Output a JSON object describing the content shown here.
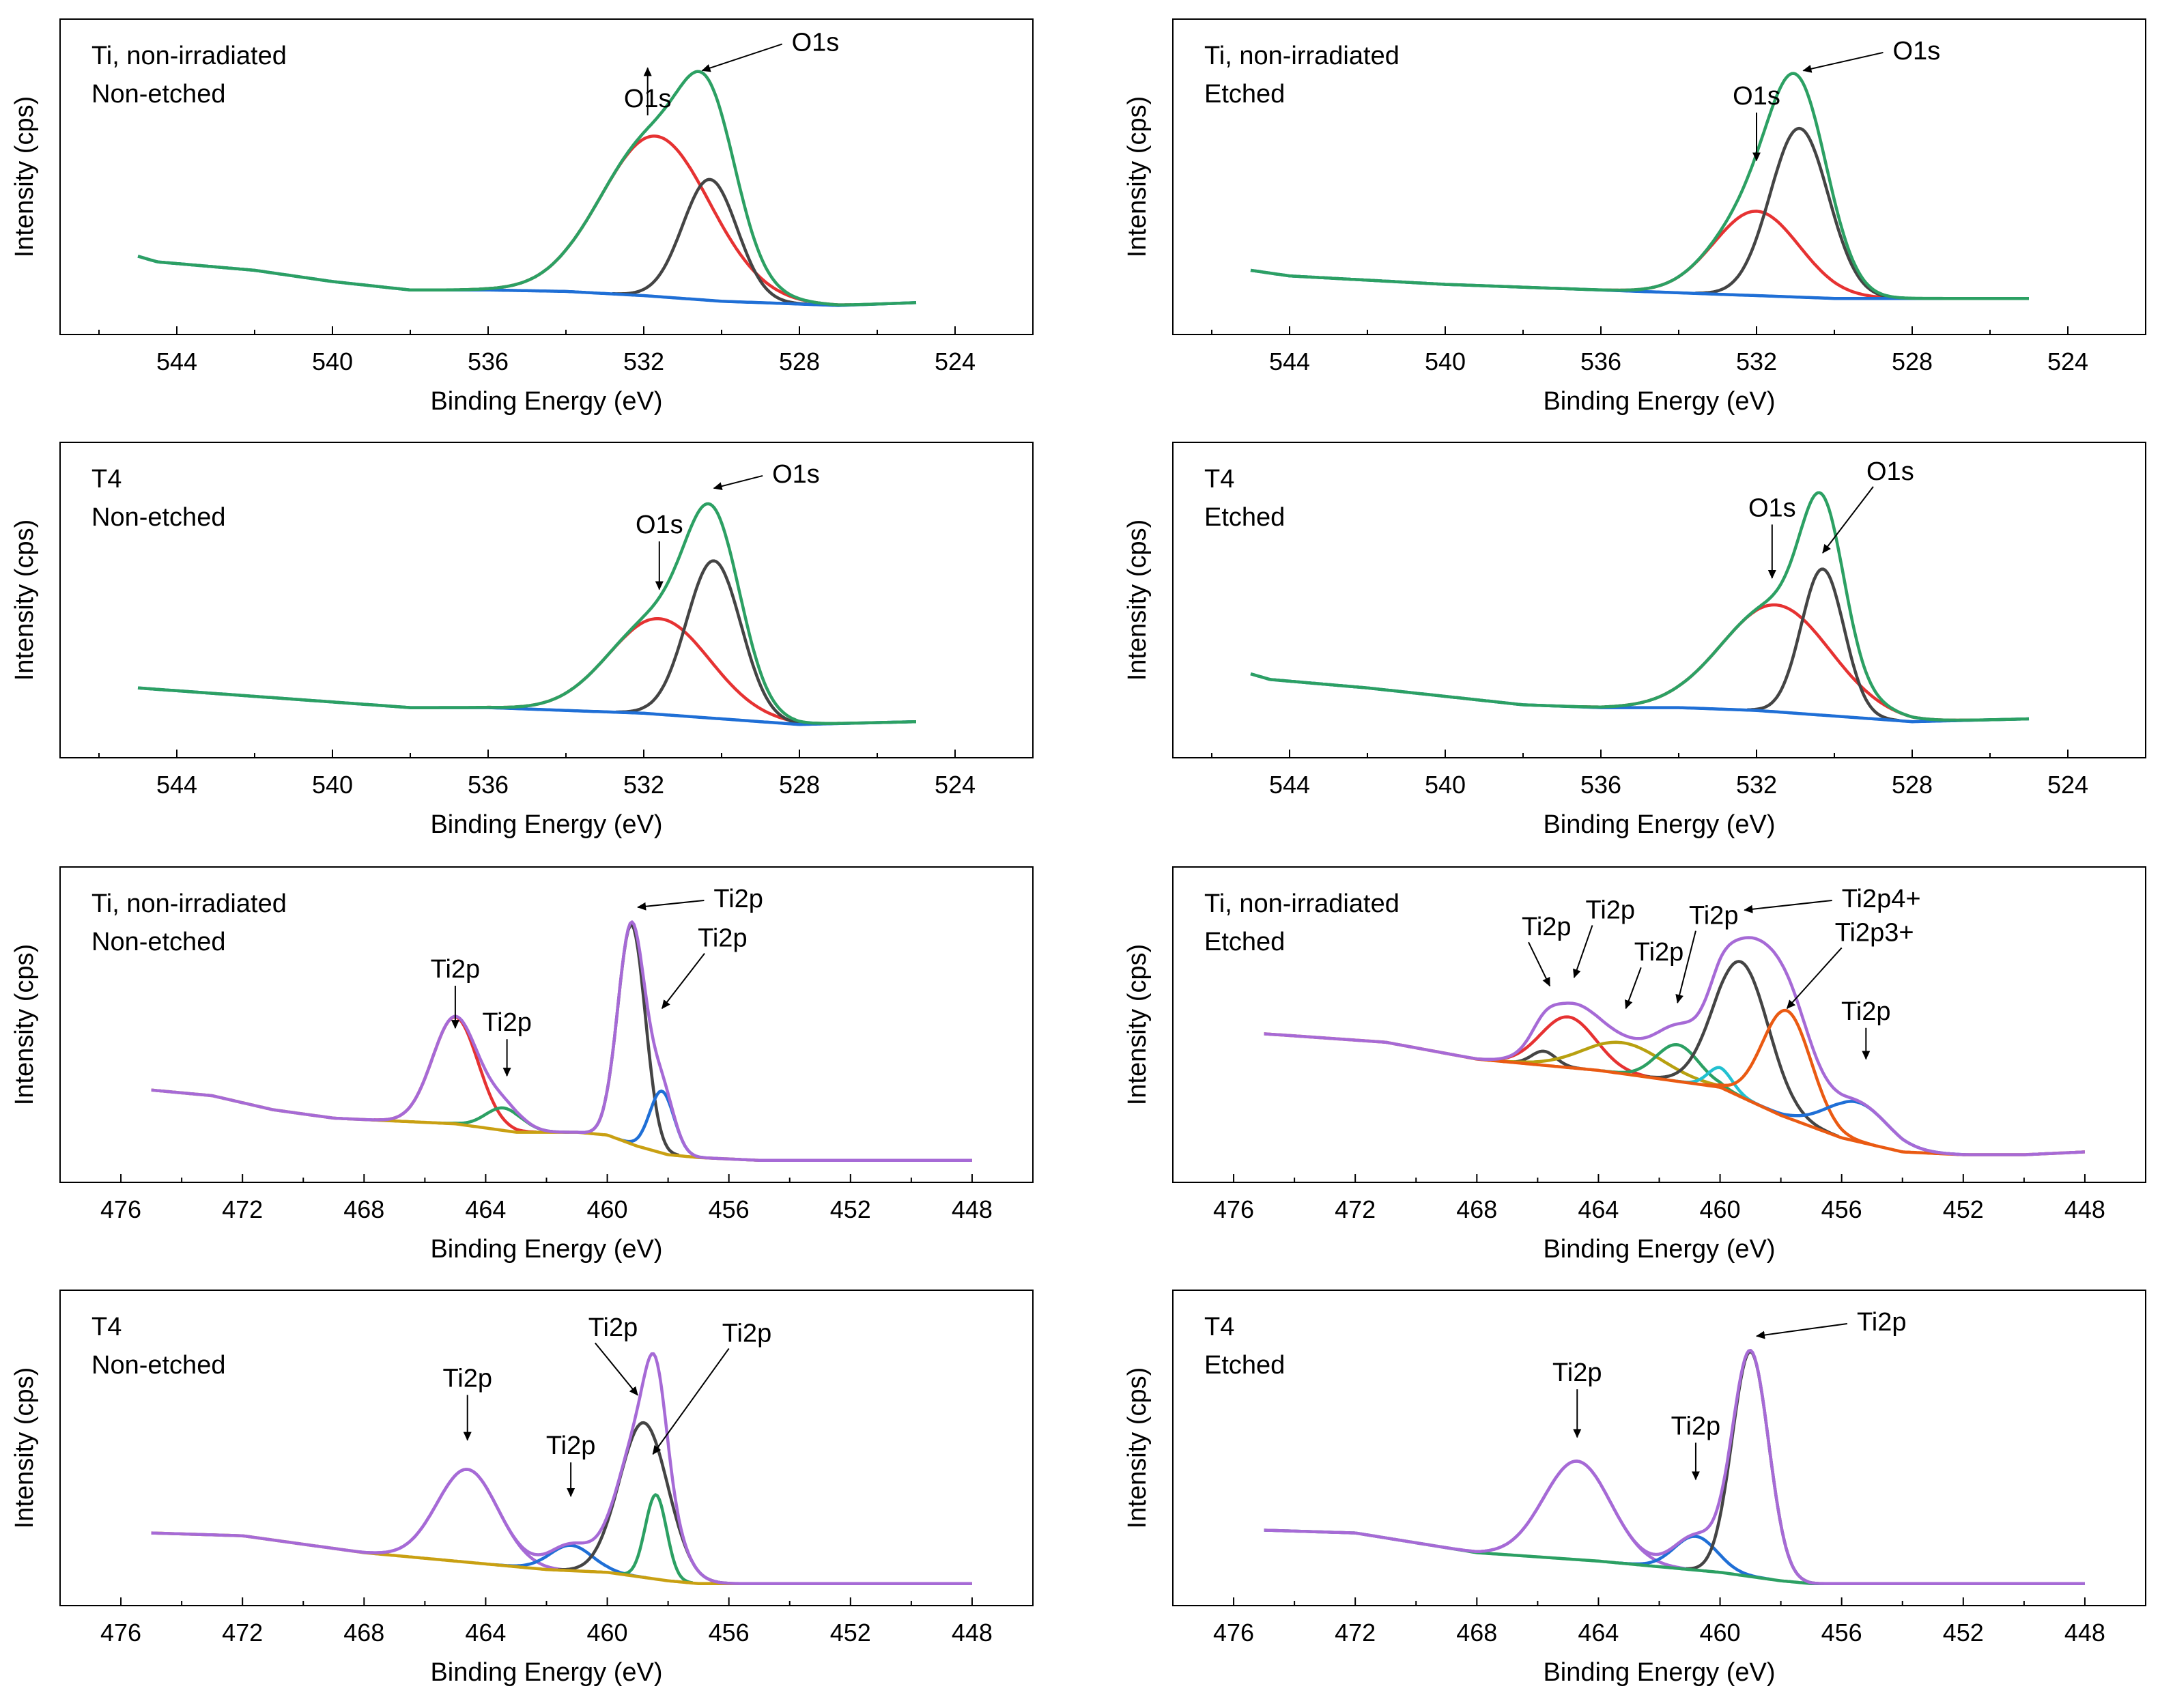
{
  "chart_data": [
    {
      "type": "line",
      "title_lines": [
        "Ti, non-irradiated",
        "Non-etched"
      ],
      "xlabel": "Binding Energy (eV)",
      "ylabel": "Intensity (cps)",
      "xlim": [
        547,
        522
      ],
      "xticks": [
        544,
        540,
        536,
        532,
        528,
        524
      ],
      "ylim": [
        0,
        100
      ],
      "background": {
        "x": [
          545,
          544.5,
          542,
          540,
          538,
          536,
          534,
          532,
          530,
          528,
          527,
          525
        ],
        "y": [
          22,
          20,
          17,
          13,
          10,
          10,
          9.5,
          8,
          6,
          5,
          4.5,
          5.5
        ]
      },
      "series": [
        {
          "name": "total",
          "color": "#2ca063",
          "kind": "sum",
          "shift": {
            "x": [
              545,
              544.5,
              542,
              540,
              538,
              537
            ],
            "y": [
              0,
              0,
              0,
              0,
              0.5,
              0.5
            ]
          }
        },
        {
          "name": "peak1",
          "color": "#e63232",
          "kind": "gauss",
          "center": 531.7,
          "amp": 57,
          "sigma": 1.4
        },
        {
          "name": "peak2",
          "color": "#444444",
          "kind": "gauss",
          "center": 530.3,
          "amp": 43,
          "sigma": 0.7
        }
      ],
      "annotations": [
        {
          "text": "O1s",
          "x": 531.9,
          "yfrac": 0.11,
          "tx": 531.9,
          "ty": 0.25,
          "arrow": "down"
        },
        {
          "text": "O1s",
          "x": 530.5,
          "yfrac": 0.12,
          "tx": 528.2,
          "ty": 0.05,
          "arrow": "left"
        }
      ]
    },
    {
      "type": "line",
      "title_lines": [
        "Ti, non-irradiated",
        "Etched"
      ],
      "xlabel": "Binding Energy (eV)",
      "ylabel": "Intensity (cps)",
      "xlim": [
        547,
        522
      ],
      "xticks": [
        544,
        540,
        536,
        532,
        528,
        524
      ],
      "ylim": [
        0,
        100
      ],
      "background": {
        "x": [
          545,
          544,
          540,
          536,
          532,
          530,
          528,
          525
        ],
        "y": [
          17,
          15,
          12,
          10,
          8,
          7,
          7,
          7
        ]
      },
      "series": [
        {
          "name": "total",
          "color": "#2ca063",
          "kind": "sum"
        },
        {
          "name": "peak1",
          "color": "#e63232",
          "kind": "gauss",
          "center": 532.0,
          "amp": 30,
          "sigma": 1.1
        },
        {
          "name": "peak2",
          "color": "#444444",
          "kind": "gauss",
          "center": 530.9,
          "amp": 60,
          "sigma": 0.75
        }
      ],
      "annotations": [
        {
          "text": "O1s",
          "x": 532.0,
          "yfrac": 0.44,
          "tx": 532.0,
          "ty": 0.24,
          "arrow": "down"
        },
        {
          "text": "O1s",
          "x": 530.8,
          "yfrac": 0.12,
          "tx": 528.5,
          "ty": 0.08,
          "arrow": "left"
        }
      ]
    },
    {
      "type": "line",
      "title_lines": [
        "T4",
        "Non-etched"
      ],
      "xlabel": "Binding Energy (eV)",
      "ylabel": "Intensity (cps)",
      "xlim": [
        547,
        522
      ],
      "xticks": [
        544,
        540,
        536,
        532,
        528,
        524
      ],
      "ylim": [
        0,
        100
      ],
      "background": {
        "x": [
          545,
          542,
          540,
          538,
          536,
          534,
          532,
          530,
          528,
          525
        ],
        "y": [
          19,
          16,
          14,
          12,
          12,
          11,
          10,
          8,
          6,
          7
        ]
      },
      "series": [
        {
          "name": "total",
          "color": "#2ca063",
          "kind": "sum"
        },
        {
          "name": "peak1",
          "color": "#e63232",
          "kind": "gauss",
          "center": 531.6,
          "amp": 34,
          "sigma": 1.3
        },
        {
          "name": "peak2",
          "color": "#444444",
          "kind": "gauss",
          "center": 530.2,
          "amp": 56,
          "sigma": 0.7
        }
      ],
      "annotations": [
        {
          "text": "O1s",
          "x": 531.6,
          "yfrac": 0.46,
          "tx": 531.6,
          "ty": 0.26,
          "arrow": "down"
        },
        {
          "text": "O1s",
          "x": 530.2,
          "yfrac": 0.1,
          "tx": 528.7,
          "ty": 0.08,
          "arrow": "left"
        }
      ]
    },
    {
      "type": "line",
      "title_lines": [
        "T4",
        "Etched"
      ],
      "xlabel": "Binding Energy (eV)",
      "ylabel": "Intensity (cps)",
      "xlim": [
        547,
        522
      ],
      "xticks": [
        544,
        540,
        536,
        532,
        528,
        524
      ],
      "ylim": [
        0,
        100
      ],
      "background": {
        "x": [
          545,
          544.5,
          542,
          540,
          538,
          536,
          534,
          532,
          530,
          528,
          525
        ],
        "y": [
          24,
          22,
          19,
          16,
          13,
          12,
          12,
          11,
          9,
          7,
          8
        ]
      },
      "series": [
        {
          "name": "total",
          "color": "#2ca063",
          "kind": "sum"
        },
        {
          "name": "peak1",
          "color": "#e63232",
          "kind": "gauss",
          "center": 531.5,
          "amp": 38,
          "sigma": 1.4
        },
        {
          "name": "peak2",
          "color": "#444444",
          "kind": "gauss",
          "center": 530.3,
          "amp": 52,
          "sigma": 0.55
        }
      ],
      "annotations": [
        {
          "text": "O1s",
          "x": 531.6,
          "yfrac": 0.42,
          "tx": 531.6,
          "ty": 0.2,
          "arrow": "down"
        },
        {
          "text": "O1s",
          "x": 530.3,
          "yfrac": 0.33,
          "tx": 529.0,
          "ty": 0.07,
          "arrow": "up"
        }
      ]
    },
    {
      "type": "line",
      "title_lines": [
        "Ti, non-irradiated",
        "Non-etched"
      ],
      "xlabel": "Binding Energy (eV)",
      "ylabel": "Intensity (cps)",
      "xlim": [
        478,
        446
      ],
      "xticks": [
        476,
        472,
        468,
        464,
        460,
        456,
        452,
        448
      ],
      "ylim": [
        0,
        100
      ],
      "background": {
        "x": [
          475,
          473,
          471,
          469,
          467,
          465,
          463,
          461,
          460,
          459,
          458,
          457,
          455,
          452,
          448
        ],
        "y": [
          27,
          25,
          20,
          17,
          16,
          15,
          12,
          12,
          11,
          7,
          4,
          3,
          2,
          2,
          2
        ]
      },
      "bgColor": "#c9a012",
      "series": [
        {
          "name": "total",
          "color": "#a66ad6",
          "kind": "sum"
        },
        {
          "name": "peak1",
          "color": "#e63232",
          "kind": "gauss",
          "center": 465.0,
          "amp": 38,
          "sigma": 0.75
        },
        {
          "name": "peak2",
          "color": "#2ca063",
          "kind": "gauss",
          "center": 463.4,
          "amp": 8,
          "sigma": 0.6
        },
        {
          "name": "peak3",
          "color": "#444444",
          "kind": "gauss",
          "center": 459.2,
          "amp": 78,
          "sigma": 0.45
        },
        {
          "name": "peak4",
          "color": "#1f6fd6",
          "kind": "gauss",
          "center": 458.2,
          "amp": 22,
          "sigma": 0.4
        }
      ],
      "annotations": [
        {
          "text": "Ti2p",
          "x": 465.0,
          "yfrac": 0.51,
          "tx": 465.0,
          "ty": 0.33,
          "arrow": "down"
        },
        {
          "text": "Ti2p",
          "x": 463.3,
          "yfrac": 0.68,
          "tx": 463.3,
          "ty": 0.52,
          "arrow": "down"
        },
        {
          "text": "Ti2p",
          "x": 459.0,
          "yfrac": 0.08,
          "tx": 456.5,
          "ty": 0.08,
          "arrow": "left"
        },
        {
          "text": "Ti2p",
          "x": 458.2,
          "yfrac": 0.44,
          "tx": 456.8,
          "ty": 0.22,
          "arrow": "up"
        }
      ]
    },
    {
      "type": "line",
      "title_lines": [
        "Ti, non-irradiated",
        "Etched"
      ],
      "xlabel": "Binding Energy (eV)",
      "ylabel": "Intensity (cps)",
      "xlim": [
        478,
        446
      ],
      "xticks": [
        476,
        472,
        468,
        464,
        460,
        456,
        452,
        448
      ],
      "ylim": [
        0,
        100
      ],
      "background": {
        "x": [
          475,
          471,
          468,
          466,
          464,
          462,
          460,
          458,
          456,
          454,
          452,
          450,
          448
        ],
        "y": [
          47,
          44,
          38,
          36,
          34,
          31,
          28,
          18,
          10,
          5,
          4,
          4,
          5
        ]
      },
      "bgColor": "#ea5a12",
      "series": [
        {
          "name": "total",
          "color": "#a66ad6",
          "kind": "sum"
        },
        {
          "name": "peak1",
          "color": "#e63232",
          "kind": "gauss",
          "center": 465.0,
          "amp": 18,
          "sigma": 0.9
        },
        {
          "name": "peak2",
          "color": "#444444",
          "kind": "gauss",
          "center": 465.8,
          "amp": 5,
          "sigma": 0.4
        },
        {
          "name": "peak3",
          "color": "#b8a010",
          "kind": "gauss",
          "center": 463.2,
          "amp": 11,
          "sigma": 1.3
        },
        {
          "name": "peak4",
          "color": "#2ca063",
          "kind": "gauss",
          "center": 461.4,
          "amp": 13,
          "sigma": 0.7
        },
        {
          "name": "peak5",
          "color": "#22c0d0",
          "kind": "gauss",
          "center": 460.0,
          "amp": 7,
          "sigma": 0.4
        },
        {
          "name": "peak6",
          "color": "#444444",
          "kind": "gauss",
          "center": 459.3,
          "amp": 48,
          "sigma": 0.9
        },
        {
          "name": "peak7",
          "color": "#ea5a12",
          "kind": "gauss",
          "center": 457.8,
          "amp": 38,
          "sigma": 0.8
        },
        {
          "name": "peak8",
          "color": "#1f6fd6",
          "kind": "gauss",
          "center": 455.5,
          "amp": 14,
          "sigma": 1.0
        }
      ],
      "annotations": [
        {
          "text": "Ti2p",
          "x": 465.6,
          "yfrac": 0.36,
          "tx": 466.3,
          "ty": 0.18,
          "arrow": "up"
        },
        {
          "text": "Ti2p",
          "x": 464.8,
          "yfrac": 0.33,
          "tx": 464.2,
          "ty": 0.12,
          "arrow": "up"
        },
        {
          "text": "Ti2p",
          "x": 463.1,
          "yfrac": 0.44,
          "tx": 462.6,
          "ty": 0.27,
          "arrow": "up"
        },
        {
          "text": "Ti2p",
          "x": 461.4,
          "yfrac": 0.42,
          "tx": 460.8,
          "ty": 0.14,
          "arrow": "up"
        },
        {
          "text": "Ti2p4+",
          "x": 459.2,
          "yfrac": 0.09,
          "tx": 456.0,
          "ty": 0.08,
          "arrow": "left"
        },
        {
          "text": "Ti2p3+",
          "x": 457.8,
          "yfrac": 0.44,
          "tx": 456.0,
          "ty": 0.2,
          "arrow": "up"
        },
        {
          "text": "Ti2p",
          "x": 455.2,
          "yfrac": 0.62,
          "tx": 455.2,
          "ty": 0.48,
          "arrow": "down"
        }
      ]
    },
    {
      "type": "line",
      "title_lines": [
        "T4",
        "Non-etched"
      ],
      "xlabel": "Binding Energy (eV)",
      "ylabel": "Intensity (cps)",
      "xlim": [
        478,
        446
      ],
      "xticks": [
        476,
        472,
        468,
        464,
        460,
        456,
        452,
        448
      ],
      "ylim": [
        0,
        100
      ],
      "background": {
        "x": [
          475,
          472,
          470,
          468,
          466,
          464,
          462,
          460,
          458,
          457,
          456,
          452,
          448
        ],
        "y": [
          20,
          19,
          16,
          13,
          11,
          9,
          7,
          6,
          3,
          2,
          2,
          2,
          2
        ]
      },
      "bgColor": "#c9a012",
      "series": [
        {
          "name": "total",
          "color": "#a66ad6",
          "kind": "sum"
        },
        {
          "name": "peak1",
          "color": "#a66ad6",
          "kind": "gauss",
          "center": 464.6,
          "amp": 33,
          "sigma": 1.0
        },
        {
          "name": "peak2",
          "color": "#1f6fd6",
          "kind": "gauss",
          "center": 461.2,
          "amp": 9,
          "sigma": 0.7
        },
        {
          "name": "peak3",
          "color": "#444444",
          "kind": "gauss",
          "center": 458.8,
          "amp": 55,
          "sigma": 0.8
        },
        {
          "name": "peak4",
          "color": "#2ca063",
          "kind": "gauss",
          "center": 458.4,
          "amp": 30,
          "sigma": 0.35
        }
      ],
      "annotations": [
        {
          "text": "Ti2p",
          "x": 464.6,
          "yfrac": 0.47,
          "tx": 464.6,
          "ty": 0.28,
          "arrow": "down"
        },
        {
          "text": "Ti2p",
          "x": 461.2,
          "yfrac": 0.67,
          "tx": 461.2,
          "ty": 0.52,
          "arrow": "down"
        },
        {
          "text": "Ti2p",
          "x": 459.0,
          "yfrac": 0.31,
          "tx": 460.4,
          "ty": 0.1,
          "arrow": "up"
        },
        {
          "text": "Ti2p",
          "x": 458.5,
          "yfrac": 0.52,
          "tx": 456.0,
          "ty": 0.12,
          "arrow": "up"
        }
      ]
    },
    {
      "type": "line",
      "title_lines": [
        "T4",
        "Etched"
      ],
      "xlabel": "Binding Energy (eV)",
      "ylabel": "Intensity (cps)",
      "xlim": [
        478,
        446
      ],
      "xticks": [
        476,
        472,
        468,
        464,
        460,
        456,
        452,
        448
      ],
      "ylim": [
        0,
        100
      ],
      "background": {
        "x": [
          475,
          472,
          468,
          464,
          462,
          460,
          458,
          457,
          456,
          452,
          448
        ],
        "y": [
          21,
          20,
          13,
          10,
          8,
          6,
          3,
          2,
          2,
          2,
          2
        ]
      },
      "bgColor": "#2ca063",
      "series": [
        {
          "name": "total",
          "color": "#a66ad6",
          "kind": "sum"
        },
        {
          "name": "peak1",
          "color": "#a66ad6",
          "kind": "gauss",
          "center": 464.7,
          "amp": 35,
          "sigma": 1.1
        },
        {
          "name": "peak2",
          "color": "#1f6fd6",
          "kind": "gauss",
          "center": 460.8,
          "amp": 12,
          "sigma": 0.7
        },
        {
          "name": "peak3",
          "color": "#444444",
          "kind": "gauss",
          "center": 459.0,
          "amp": 80,
          "sigma": 0.6
        }
      ],
      "annotations": [
        {
          "text": "Ti2p",
          "x": 464.7,
          "yfrac": 0.46,
          "tx": 464.7,
          "ty": 0.26,
          "arrow": "down"
        },
        {
          "text": "Ti2p",
          "x": 460.8,
          "yfrac": 0.61,
          "tx": 460.8,
          "ty": 0.45,
          "arrow": "down"
        },
        {
          "text": "Ti2p",
          "x": 458.8,
          "yfrac": 0.1,
          "tx": 455.5,
          "ty": 0.08,
          "arrow": "left"
        }
      ]
    }
  ]
}
